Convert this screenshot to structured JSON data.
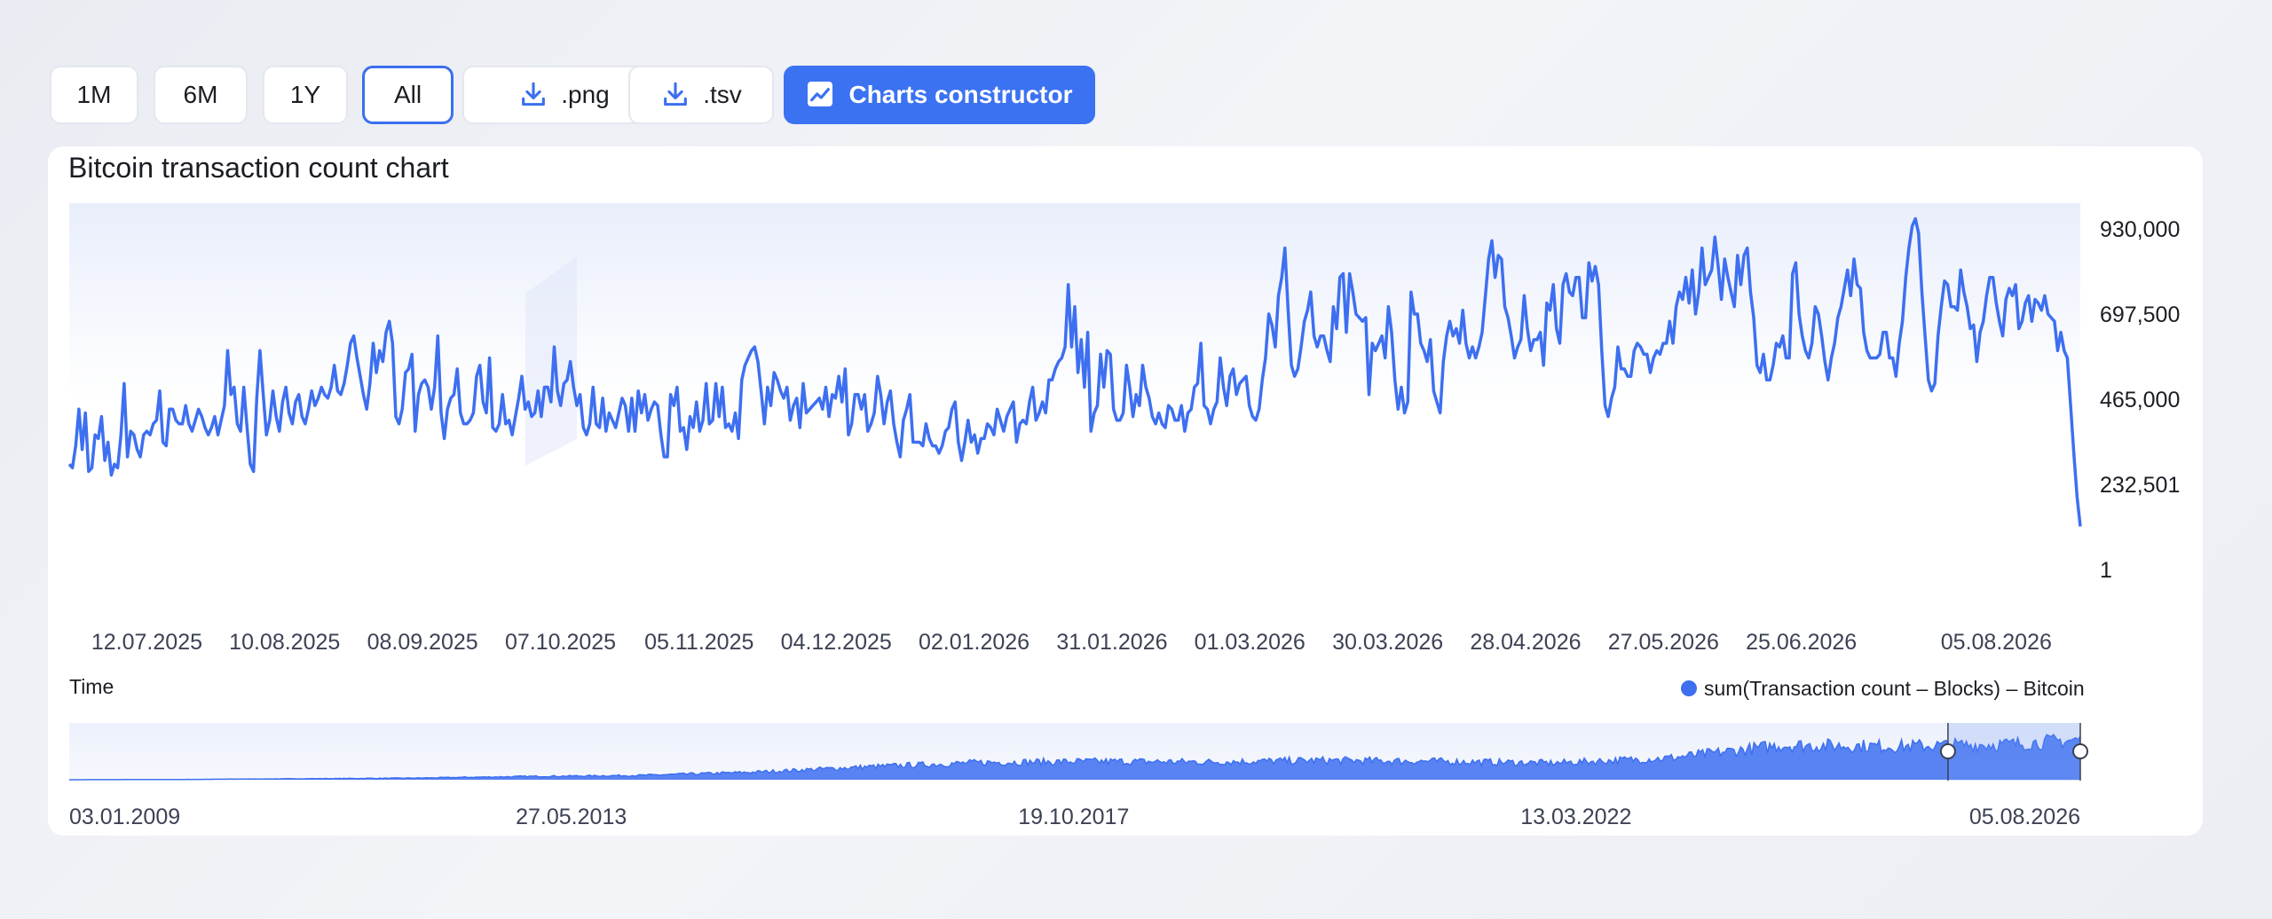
{
  "toolbar": {
    "range_buttons": [
      "1M",
      "6M",
      "1Y",
      "All"
    ],
    "active_range": "All",
    "png_label": ".png",
    "tsv_label": ".tsv",
    "constructor_label": "Charts constructor"
  },
  "colors": {
    "accent": "#3b72f2",
    "line": "#3d6ff0",
    "active_border": "#3b6fee"
  },
  "chart_data": {
    "type": "line",
    "title": "Bitcoin transaction count chart",
    "xlabel": "Time",
    "x_ticks": [
      "12.07.2025",
      "10.08.2025",
      "08.09.2025",
      "07.10.2025",
      "05.11.2025",
      "04.12.2025",
      "02.01.2026",
      "31.01.2026",
      "01.03.2026",
      "30.03.2026",
      "28.04.2026",
      "27.05.2026",
      "25.06.2026",
      "05.08.2026"
    ],
    "y_ticks": [
      "930,000",
      "697,500",
      "465,000",
      "232,501",
      "1"
    ],
    "ylim": [
      1,
      930000
    ],
    "x_range": [
      "14.06.2025",
      "11.08.2026"
    ],
    "legend": {
      "label": "sum(Transaction count – Blocks) – Bitcoin",
      "position": "bottom-right"
    },
    "series": [
      {
        "values": [
          290000,
          280000,
          340000,
          440000,
          330000,
          430000,
          270000,
          280000,
          370000,
          360000,
          420000,
          300000,
          350000,
          260000,
          290000,
          280000,
          370000,
          510000,
          310000,
          380000,
          370000,
          330000,
          310000,
          370000,
          380000,
          370000,
          400000,
          410000,
          490000,
          350000,
          340000,
          440000,
          440000,
          410000,
          400000,
          400000,
          450000,
          400000,
          380000,
          410000,
          440000,
          420000,
          390000,
          370000,
          390000,
          420000,
          370000,
          410000,
          450000,
          600000,
          480000,
          500000,
          400000,
          380000,
          500000,
          390000,
          290000,
          270000,
          470000,
          600000,
          480000,
          370000,
          410000,
          490000,
          420000,
          380000,
          460000,
          500000,
          430000,
          400000,
          460000,
          480000,
          420000,
          400000,
          440000,
          490000,
          450000,
          470000,
          500000,
          480000,
          470000,
          500000,
          560000,
          490000,
          480000,
          510000,
          560000,
          620000,
          640000,
          580000,
          530000,
          480000,
          440000,
          510000,
          620000,
          540000,
          600000,
          570000,
          650000,
          680000,
          620000,
          420000,
          400000,
          440000,
          540000,
          550000,
          590000,
          380000,
          480000,
          510000,
          520000,
          500000,
          440000,
          500000,
          640000,
          430000,
          360000,
          440000,
          470000,
          480000,
          550000,
          430000,
          400000,
          400000,
          410000,
          430000,
          530000,
          560000,
          460000,
          430000,
          580000,
          390000,
          380000,
          400000,
          480000,
          400000,
          410000,
          370000,
          420000,
          470000,
          530000,
          440000,
          460000,
          420000,
          430000,
          490000,
          420000,
          500000,
          500000,
          460000,
          610000,
          490000,
          450000,
          510000,
          520000,
          570000,
          500000,
          450000,
          480000,
          390000,
          370000,
          400000,
          500000,
          400000,
          390000,
          470000,
          380000,
          430000,
          410000,
          390000,
          430000,
          470000,
          450000,
          380000,
          470000,
          380000,
          490000,
          430000,
          480000,
          410000,
          440000,
          460000,
          450000,
          370000,
          310000,
          310000,
          480000,
          450000,
          500000,
          380000,
          390000,
          330000,
          420000,
          390000,
          460000,
          380000,
          410000,
          510000,
          400000,
          410000,
          510000,
          420000,
          500000,
          390000,
          400000,
          380000,
          430000,
          360000,
          520000,
          560000,
          580000,
          600000,
          610000,
          570000,
          490000,
          400000,
          500000,
          450000,
          540000,
          520000,
          490000,
          470000,
          500000,
          410000,
          450000,
          470000,
          390000,
          510000,
          430000,
          440000,
          450000,
          460000,
          470000,
          440000,
          500000,
          420000,
          480000,
          470000,
          530000,
          460000,
          550000,
          370000,
          400000,
          480000,
          480000,
          440000,
          480000,
          380000,
          400000,
          430000,
          530000,
          480000,
          400000,
          460000,
          490000,
          400000,
          350000,
          310000,
          410000,
          440000,
          480000,
          350000,
          350000,
          350000,
          340000,
          400000,
          360000,
          340000,
          340000,
          320000,
          340000,
          380000,
          390000,
          440000,
          460000,
          350000,
          300000,
          350000,
          410000,
          350000,
          370000,
          320000,
          360000,
          360000,
          400000,
          390000,
          370000,
          440000,
          410000,
          380000,
          420000,
          440000,
          460000,
          350000,
          400000,
          410000,
          400000,
          460000,
          500000,
          410000,
          430000,
          460000,
          430000,
          520000,
          520000,
          550000,
          570000,
          580000,
          610000,
          780000,
          610000,
          720000,
          540000,
          630000,
          500000,
          650000,
          380000,
          430000,
          450000,
          590000,
          500000,
          600000,
          590000,
          440000,
          410000,
          410000,
          430000,
          560000,
          500000,
          420000,
          480000,
          450000,
          560000,
          500000,
          470000,
          420000,
          400000,
          430000,
          400000,
          390000,
          450000,
          440000,
          410000,
          410000,
          450000,
          380000,
          430000,
          440000,
          500000,
          510000,
          620000,
          450000,
          440000,
          400000,
          440000,
          460000,
          580000,
          500000,
          450000,
          530000,
          550000,
          480000,
          510000,
          520000,
          530000,
          450000,
          420000,
          410000,
          440000,
          520000,
          580000,
          700000,
          670000,
          610000,
          750000,
          800000,
          880000,
          710000,
          560000,
          530000,
          550000,
          610000,
          680000,
          710000,
          760000,
          640000,
          610000,
          640000,
          640000,
          600000,
          570000,
          720000,
          660000,
          800000,
          810000,
          650000,
          810000,
          760000,
          700000,
          690000,
          680000,
          690000,
          480000,
          620000,
          600000,
          620000,
          640000,
          580000,
          720000,
          650000,
          520000,
          440000,
          500000,
          430000,
          460000,
          760000,
          700000,
          700000,
          620000,
          600000,
          570000,
          630000,
          490000,
          460000,
          430000,
          570000,
          640000,
          680000,
          640000,
          660000,
          620000,
          710000,
          620000,
          580000,
          610000,
          580000,
          610000,
          650000,
          750000,
          850000,
          900000,
          800000,
          860000,
          850000,
          720000,
          690000,
          640000,
          580000,
          610000,
          630000,
          750000,
          660000,
          600000,
          630000,
          630000,
          650000,
          560000,
          730000,
          710000,
          780000,
          660000,
          620000,
          780000,
          810000,
          760000,
          750000,
          800000,
          800000,
          690000,
          690000,
          840000,
          790000,
          830000,
          780000,
          600000,
          450000,
          420000,
          470000,
          500000,
          610000,
          550000,
          550000,
          530000,
          530000,
          600000,
          620000,
          610000,
          590000,
          590000,
          540000,
          580000,
          600000,
          590000,
          620000,
          620000,
          680000,
          620000,
          720000,
          760000,
          740000,
          800000,
          730000,
          820000,
          700000,
          760000,
          880000,
          780000,
          800000,
          820000,
          910000,
          830000,
          740000,
          850000,
          800000,
          760000,
          720000,
          860000,
          780000,
          860000,
          880000,
          760000,
          690000,
          560000,
          540000,
          590000,
          520000,
          520000,
          560000,
          620000,
          610000,
          640000,
          580000,
          580000,
          810000,
          840000,
          700000,
          640000,
          600000,
          580000,
          620000,
          720000,
          700000,
          640000,
          570000,
          520000,
          580000,
          620000,
          690000,
          720000,
          770000,
          820000,
          750000,
          850000,
          780000,
          770000,
          650000,
          600000,
          580000,
          580000,
          580000,
          590000,
          650000,
          650000,
          580000,
          580000,
          530000,
          620000,
          680000,
          800000,
          880000,
          940000,
          960000,
          920000,
          760000,
          640000,
          520000,
          490000,
          510000,
          640000,
          720000,
          790000,
          780000,
          720000,
          720000,
          710000,
          820000,
          760000,
          720000,
          660000,
          670000,
          570000,
          650000,
          680000,
          750000,
          800000,
          800000,
          730000,
          680000,
          640000,
          740000,
          770000,
          750000,
          780000,
          660000,
          680000,
          730000,
          750000,
          680000,
          740000,
          730000,
          710000,
          750000,
          700000,
          690000,
          680000,
          600000,
          650000,
          600000,
          580000,
          450000,
          320000,
          200000,
          120000
        ]
      }
    ],
    "navigator": {
      "type": "area",
      "x_ticks": [
        "03.01.2009",
        "27.05.2013",
        "19.10.2017",
        "13.03.2022",
        "05.08.2026"
      ],
      "x_range": [
        "03.01.2009",
        "11.08.2026"
      ],
      "selection": [
        "14.06.2025",
        "11.08.2026"
      ]
    }
  }
}
